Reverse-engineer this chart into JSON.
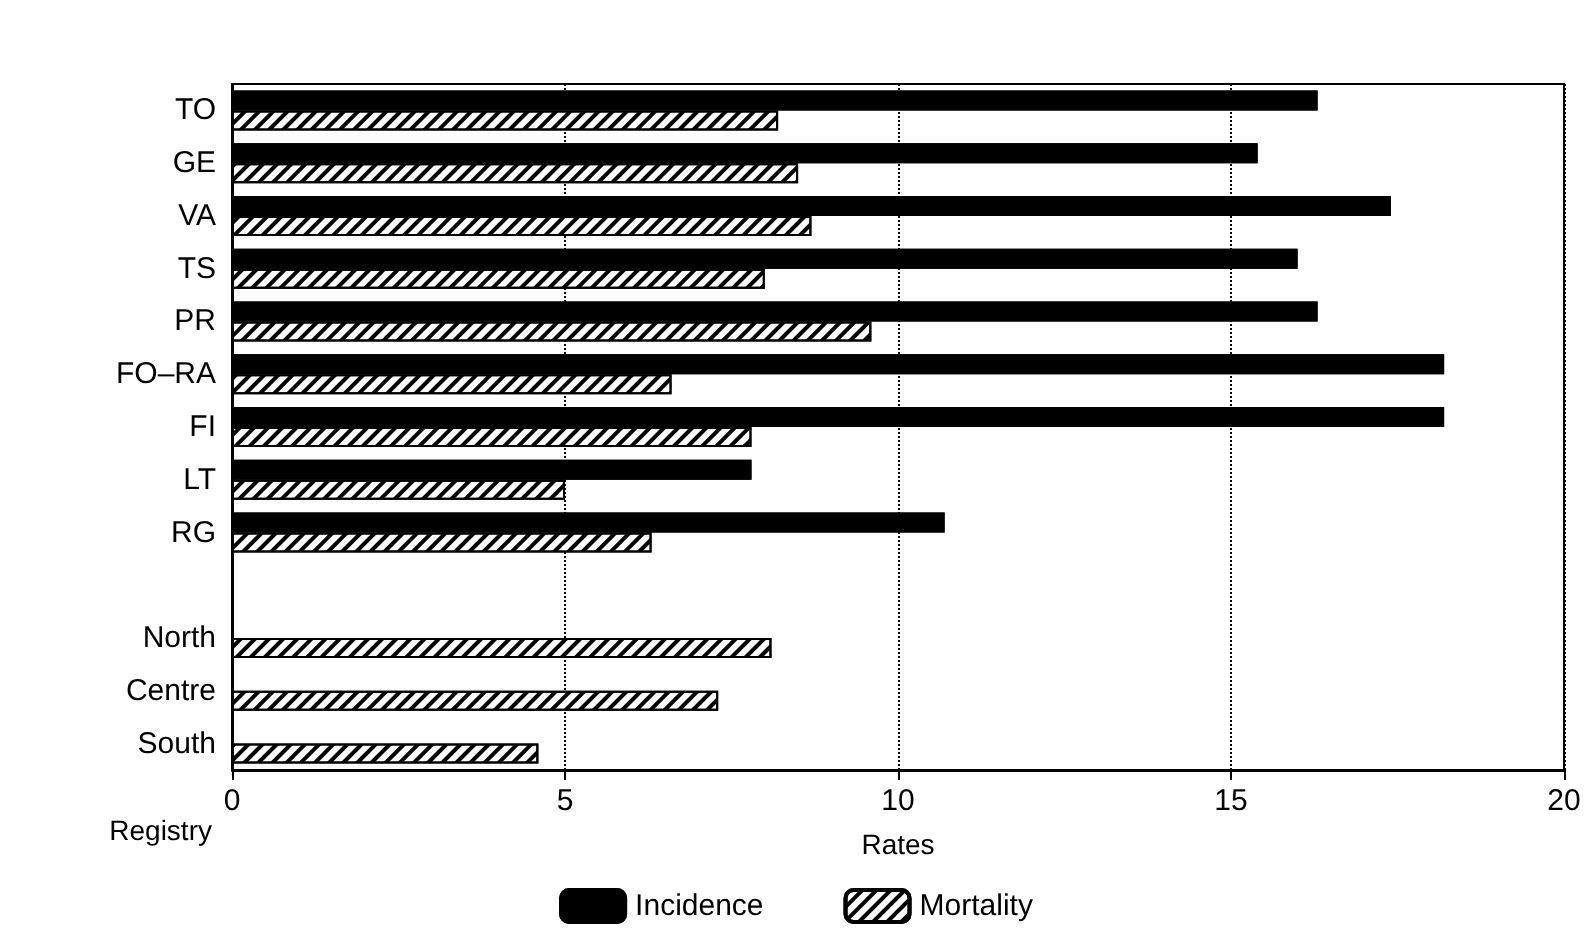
{
  "chart_data": {
    "type": "bar",
    "orientation": "horizontal",
    "ylabel": "Registry",
    "xlabel": "Rates",
    "categories": [
      "TO",
      "GE",
      "VA",
      "TS",
      "PR",
      "FO–RA",
      "FI",
      "LT",
      "RG",
      null,
      "North",
      "Centre",
      "South"
    ],
    "series": [
      {
        "name": "Incidence",
        "color": "#000000",
        "values": [
          16.3,
          15.4,
          17.4,
          16.0,
          16.3,
          18.2,
          18.2,
          7.8,
          10.7,
          null,
          null,
          null,
          null
        ]
      },
      {
        "name": "Mortality",
        "color": "#ffffff",
        "values": [
          8.2,
          8.5,
          8.7,
          8.0,
          9.6,
          6.6,
          7.8,
          5.0,
          6.3,
          null,
          8.1,
          7.3,
          4.6
        ]
      }
    ],
    "xlim": [
      0,
      20
    ],
    "xticks": [
      0,
      5,
      10,
      15,
      20
    ],
    "grid": "x",
    "legend": "bottom"
  }
}
